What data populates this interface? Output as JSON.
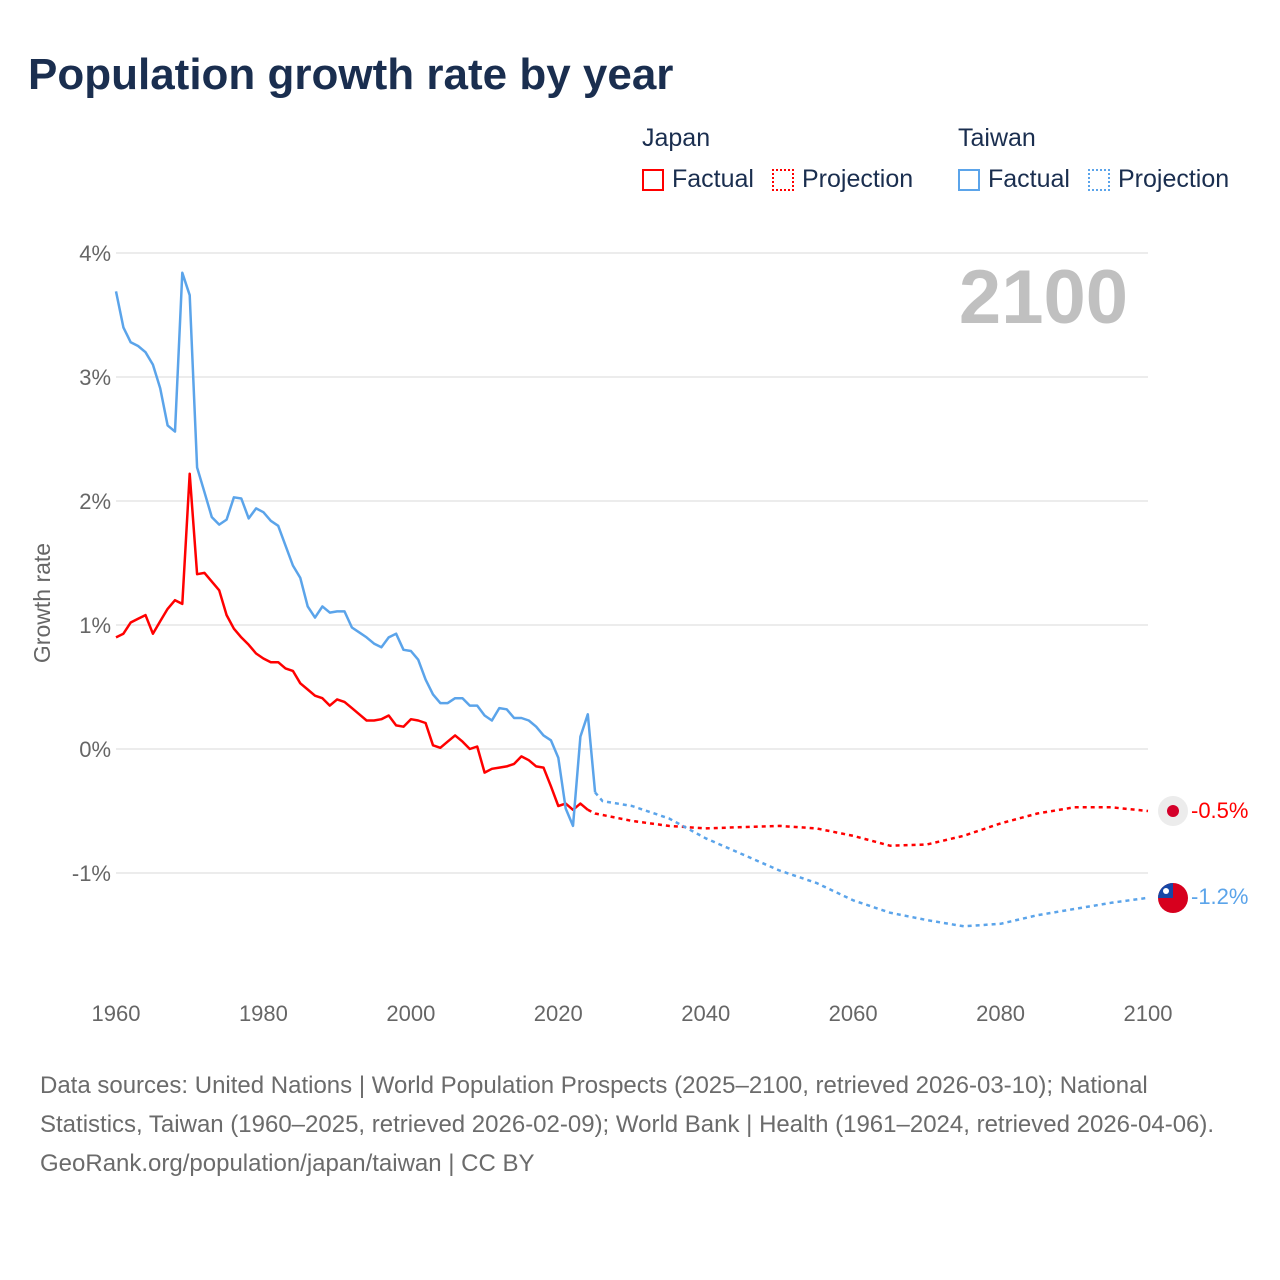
{
  "title": "Population growth rate by year",
  "legend": {
    "groups": [
      {
        "name": "Japan",
        "color": "#ff0000",
        "factual_label": "Factual",
        "projection_label": "Projection"
      },
      {
        "name": "Taiwan",
        "color": "#5ba4ea",
        "factual_label": "Factual",
        "projection_label": "Projection"
      }
    ]
  },
  "footer": {
    "sources": "Data sources: United Nations | World Population Prospects (2025–2100, retrieved 2026-03-10); National Statistics, Taiwan (1960–2025, retrieved 2026-02-09); World Bank | Health (1961–2024, retrieved 2026-04-06).",
    "credit": "GeoRank.org/population/japan/taiwan | CC BY"
  },
  "chart_data": {
    "type": "line",
    "title": "Population growth rate by year",
    "xlabel": "",
    "ylabel": "Growth rate",
    "xlim": [
      1960,
      2100
    ],
    "ylim": [
      -1.9,
      4.0
    ],
    "x_ticks": [
      1960,
      1980,
      2000,
      2020,
      2040,
      2060,
      2080,
      2100
    ],
    "x_tick_labels": [
      "1960",
      "1980",
      "2000",
      "2020",
      "2040",
      "2060",
      "2080",
      "2100"
    ],
    "y_ticks": [
      4,
      3,
      2,
      1,
      0,
      -1
    ],
    "y_tick_labels": [
      "4%",
      "3%",
      "2%",
      "1%",
      "0%",
      "-1%"
    ],
    "grid": true,
    "year_watermark": "2100",
    "series": [
      {
        "name": "Japan Factual",
        "color": "#ff0000",
        "style": "solid",
        "x": [
          1960,
          1961,
          1962,
          1963,
          1964,
          1965,
          1966,
          1967,
          1968,
          1969,
          1970,
          1971,
          1972,
          1973,
          1974,
          1975,
          1976,
          1977,
          1978,
          1979,
          1980,
          1981,
          1982,
          1983,
          1984,
          1985,
          1986,
          1987,
          1988,
          1989,
          1990,
          1991,
          1992,
          1993,
          1994,
          1995,
          1996,
          1997,
          1998,
          1999,
          2000,
          2001,
          2002,
          2003,
          2004,
          2005,
          2006,
          2007,
          2008,
          2009,
          2010,
          2011,
          2012,
          2013,
          2014,
          2015,
          2016,
          2017,
          2018,
          2019,
          2020,
          2021,
          2022,
          2023,
          2024
        ],
        "values": [
          0.9,
          0.93,
          1.02,
          1.05,
          1.08,
          0.93,
          1.03,
          1.13,
          1.2,
          1.17,
          2.22,
          1.41,
          1.42,
          1.35,
          1.28,
          1.08,
          0.97,
          0.9,
          0.84,
          0.77,
          0.73,
          0.7,
          0.7,
          0.65,
          0.63,
          0.53,
          0.48,
          0.43,
          0.41,
          0.35,
          0.4,
          0.38,
          0.33,
          0.28,
          0.23,
          0.23,
          0.24,
          0.27,
          0.19,
          0.18,
          0.24,
          0.23,
          0.21,
          0.03,
          0.01,
          0.06,
          0.11,
          0.06,
          0.0,
          0.02,
          -0.19,
          -0.16,
          -0.15,
          -0.14,
          -0.12,
          -0.06,
          -0.09,
          -0.14,
          -0.15,
          -0.3,
          -0.46,
          -0.44,
          -0.49,
          -0.44,
          -0.49
        ]
      },
      {
        "name": "Japan Projection",
        "color": "#ff0000",
        "style": "dotted",
        "x": [
          2024,
          2025,
          2030,
          2035,
          2040,
          2045,
          2050,
          2055,
          2060,
          2065,
          2070,
          2075,
          2080,
          2085,
          2090,
          2095,
          2100
        ],
        "values": [
          -0.49,
          -0.52,
          -0.58,
          -0.62,
          -0.64,
          -0.63,
          -0.62,
          -0.64,
          -0.7,
          -0.78,
          -0.77,
          -0.7,
          -0.6,
          -0.52,
          -0.47,
          -0.47,
          -0.5
        ]
      },
      {
        "name": "Taiwan Factual",
        "color": "#5ba4ea",
        "style": "solid",
        "x": [
          1960,
          1961,
          1962,
          1963,
          1964,
          1965,
          1966,
          1967,
          1968,
          1969,
          1970,
          1971,
          1972,
          1973,
          1974,
          1975,
          1976,
          1977,
          1978,
          1979,
          1980,
          1981,
          1982,
          1983,
          1984,
          1985,
          1986,
          1987,
          1988,
          1989,
          1990,
          1991,
          1992,
          1993,
          1994,
          1995,
          1996,
          1997,
          1998,
          1999,
          2000,
          2001,
          2002,
          2003,
          2004,
          2005,
          2006,
          2007,
          2008,
          2009,
          2010,
          2011,
          2012,
          2013,
          2014,
          2015,
          2016,
          2017,
          2018,
          2019,
          2020,
          2021,
          2022,
          2023,
          2024,
          2025
        ],
        "values": [
          3.69,
          3.4,
          3.28,
          3.25,
          3.2,
          3.1,
          2.91,
          2.61,
          2.56,
          3.84,
          3.66,
          2.27,
          2.07,
          1.87,
          1.81,
          1.85,
          2.03,
          2.02,
          1.86,
          1.94,
          1.91,
          1.84,
          1.8,
          1.64,
          1.48,
          1.38,
          1.15,
          1.06,
          1.15,
          1.1,
          1.11,
          1.11,
          0.98,
          0.94,
          0.9,
          0.85,
          0.82,
          0.9,
          0.93,
          0.8,
          0.79,
          0.72,
          0.56,
          0.44,
          0.37,
          0.37,
          0.41,
          0.41,
          0.35,
          0.35,
          0.27,
          0.23,
          0.33,
          0.32,
          0.25,
          0.25,
          0.23,
          0.18,
          0.11,
          0.07,
          -0.07,
          -0.48,
          -0.62,
          0.1,
          0.28,
          -0.35
        ]
      },
      {
        "name": "Taiwan Projection",
        "color": "#5ba4ea",
        "style": "dotted",
        "x": [
          2025,
          2026,
          2030,
          2035,
          2040,
          2045,
          2050,
          2055,
          2060,
          2065,
          2070,
          2075,
          2080,
          2085,
          2090,
          2095,
          2100
        ],
        "values": [
          -0.35,
          -0.42,
          -0.46,
          -0.56,
          -0.72,
          -0.85,
          -0.98,
          -1.08,
          -1.22,
          -1.32,
          -1.38,
          -1.43,
          -1.41,
          -1.34,
          -1.29,
          -1.24,
          -1.2
        ]
      }
    ],
    "end_labels": [
      {
        "series": "Japan",
        "text": "-0.5%",
        "value": -0.5,
        "color": "#ff0000"
      },
      {
        "series": "Taiwan",
        "text": "-1.2%",
        "value": -1.2,
        "color": "#5ba4ea"
      }
    ]
  }
}
